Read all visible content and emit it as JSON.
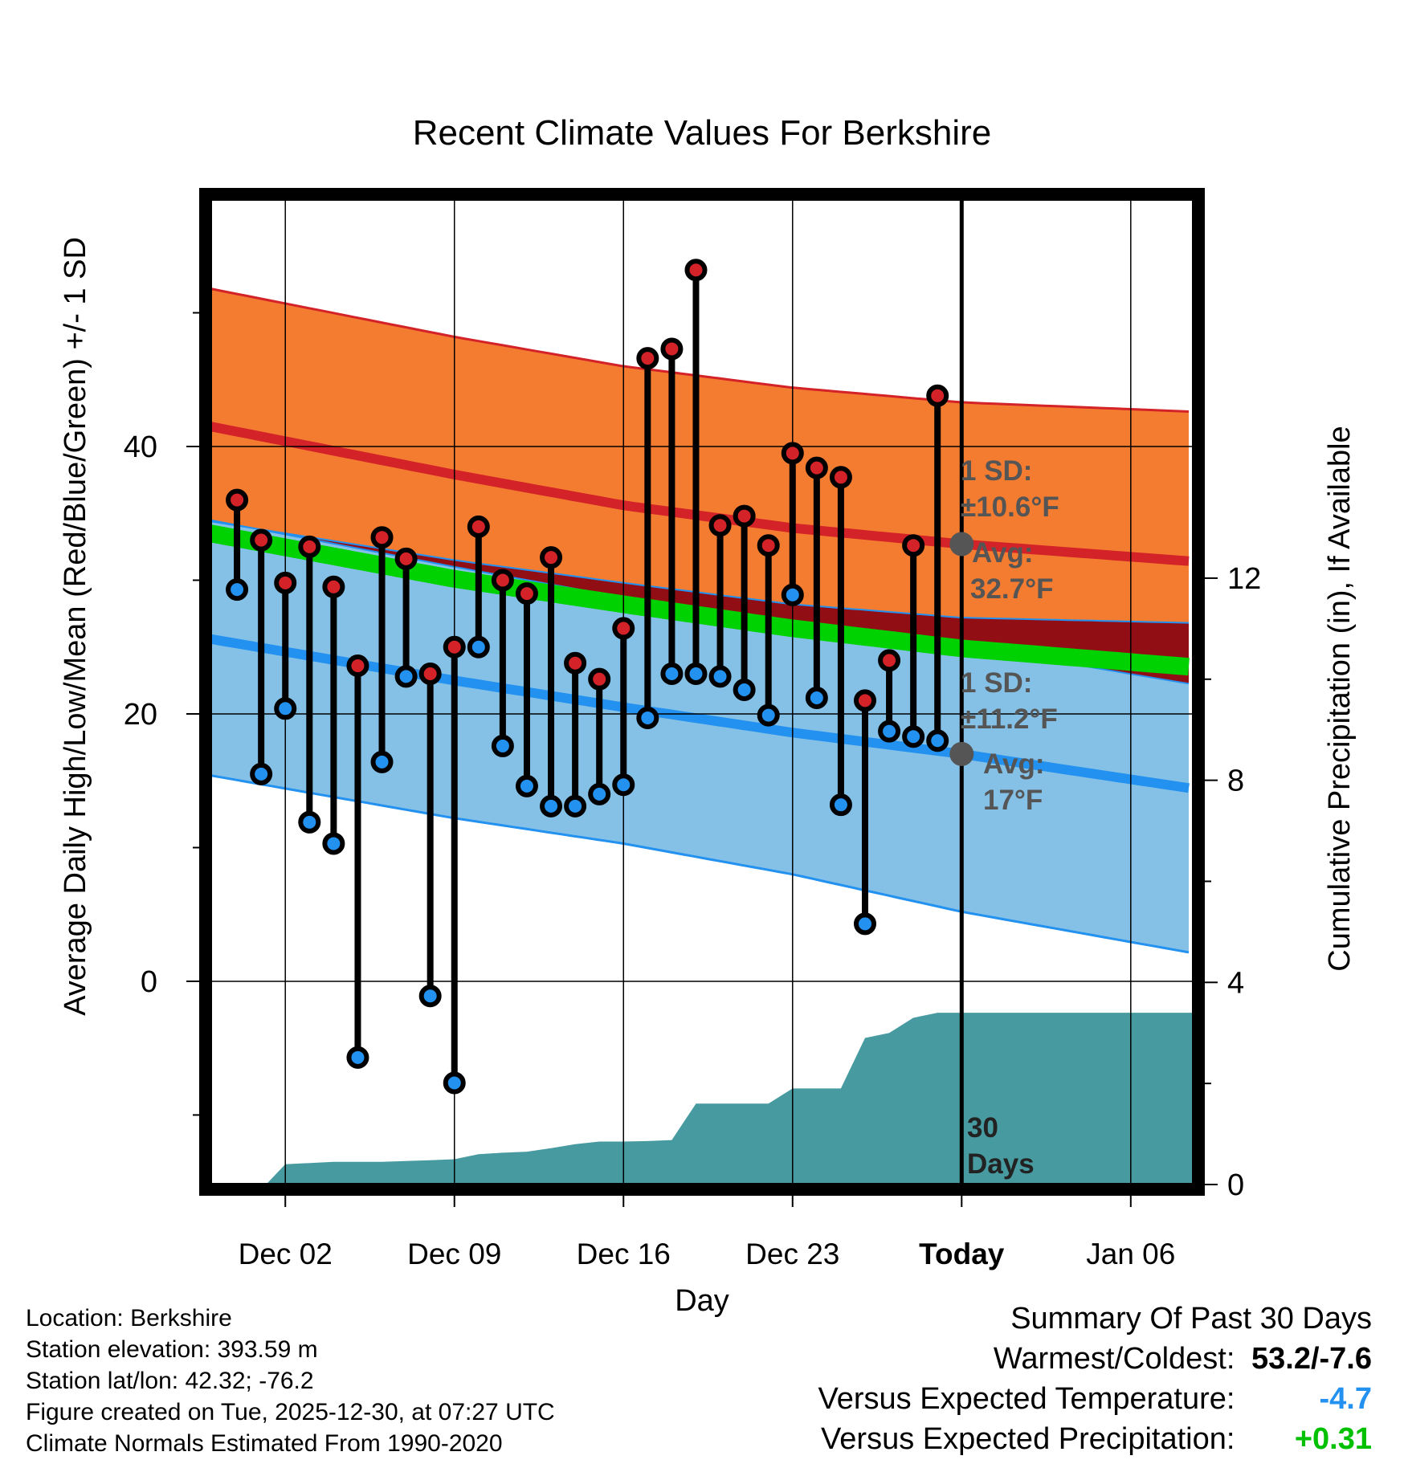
{
  "chart_data": {
    "type": "line",
    "title": "Recent Climate Values For Berkshire",
    "xlabel": "Day",
    "ylabel": "Average Daily High/Low/Mean (Red/Blue/Green) +/- 1 SD",
    "y2label": "Cumulative Precipitation (in), If Available",
    "x_tick_labels": [
      "Dec 02",
      "Dec 09",
      "Dec 16",
      "Dec 23",
      "Today",
      "Jan 06"
    ],
    "x_tick_days": [
      2,
      9,
      16,
      23,
      30,
      37
    ],
    "xlim": [
      -1.1,
      39.6
    ],
    "ylim": [
      -15.2,
      58.5
    ],
    "y_ticks": [
      0,
      20,
      40
    ],
    "y_minor_ticks": [
      -10,
      10,
      30,
      50
    ],
    "y2lim": [
      0,
      19.5
    ],
    "y2_ticks": [
      0,
      4,
      8,
      12
    ],
    "normals_days": [
      -1.1,
      9,
      16,
      23,
      30,
      39.6
    ],
    "normal_high": [
      41.5,
      37.9,
      35.6,
      33.9,
      32.7,
      31.4
    ],
    "normal_high_upper": [
      51.8,
      48.2,
      46.0,
      44.4,
      43.3,
      42.6
    ],
    "normal_high_lower": [
      34.5,
      31.0,
      28.7,
      26.9,
      25.1,
      22.2
    ],
    "normal_mean": [
      33.5,
      30.1,
      28.2,
      26.4,
      24.9,
      23.5
    ],
    "normal_low": [
      25.6,
      22.5,
      20.5,
      18.6,
      17.0,
      14.4
    ],
    "normal_low_upper": [
      34.4,
      31.5,
      29.8,
      28.2,
      27.2,
      26.8
    ],
    "normal_low_lower": [
      15.4,
      12.2,
      10.3,
      8.0,
      5.2,
      2.1
    ],
    "obs_days": [
      0,
      1,
      2,
      3,
      4,
      5,
      6,
      7,
      8,
      9,
      10,
      11,
      12,
      13,
      14,
      15,
      16,
      17,
      18,
      19,
      20,
      21,
      22,
      23,
      24,
      25,
      26,
      27,
      28,
      29
    ],
    "obs_high": [
      36.0,
      33.0,
      29.8,
      32.5,
      29.5,
      23.6,
      33.2,
      31.6,
      23.0,
      25.0,
      34.0,
      30.0,
      29.0,
      31.7,
      23.8,
      22.6,
      26.4,
      46.6,
      47.3,
      53.2,
      34.1,
      34.8,
      32.6,
      39.5,
      38.4,
      37.7,
      21.0,
      24.0,
      32.6,
      43.8
    ],
    "obs_low": [
      29.3,
      15.5,
      20.4,
      11.9,
      10.3,
      -5.7,
      16.4,
      22.8,
      -1.1,
      -7.6,
      25.0,
      17.6,
      14.6,
      13.1,
      13.1,
      14.0,
      14.7,
      19.7,
      23.0,
      23.0,
      22.8,
      21.8,
      19.9,
      28.9,
      21.2,
      13.2,
      4.3,
      18.7,
      18.3,
      18.0
    ],
    "precip_days": [
      -1.1,
      1.2,
      2.0,
      4.0,
      6.0,
      8.0,
      9.0,
      10.0,
      11.0,
      12.0,
      13.0,
      14.0,
      15.0,
      16.0,
      17.0,
      18.0,
      19.0,
      20.0,
      21.0,
      22.0,
      23.0,
      24.0,
      25.0,
      26.0,
      27.0,
      28.0,
      29.0,
      30.0,
      39.6
    ],
    "precip_cum": [
      0,
      0,
      0.4,
      0.45,
      0.45,
      0.48,
      0.5,
      0.6,
      0.63,
      0.65,
      0.72,
      0.8,
      0.85,
      0.85,
      0.86,
      0.88,
      1.6,
      1.6,
      1.6,
      1.6,
      1.9,
      1.9,
      1.9,
      2.9,
      3.0,
      3.3,
      3.4,
      3.4,
      3.4
    ],
    "annotations": {
      "high_sd_label": "1 SD:",
      "high_sd_value": "±10.6°F",
      "high_avg_label": "Avg:",
      "high_avg_value": "32.7°F",
      "low_sd_label": "1 SD:",
      "low_sd_value": "±11.2°F",
      "low_avg_label": "Avg:",
      "low_avg_value": "17°F",
      "window_number": "30",
      "window_unit": "Days"
    },
    "colors": {
      "high_band": "#f47c30",
      "high_line": "#d32228",
      "low_band": "#85c1e6",
      "low_line": "#2291f0",
      "mean_line": "#00d100",
      "overlap_band": "#920e15",
      "precip": "#469aa0",
      "dot_high": "#d32228",
      "dot_low": "#2291f0"
    }
  },
  "info": {
    "location": "Location: Berkshire",
    "elevation": "Station elevation: 393.59 m",
    "latlon": "Station lat/lon: 42.32; -76.2",
    "created": "Figure created on Tue, 2025-12-30, at 07:27 UTC",
    "normals": "Climate Normals Estimated From 1990-2020"
  },
  "summary": {
    "title": "Summary Of Past 30 Days",
    "warm_cold_label": "Warmest/Coldest:",
    "warm_cold_value": "53.2/-7.6",
    "temp_label": "Versus Expected Temperature:",
    "temp_value": "-4.7",
    "temp_color": "#2291f0",
    "precip_label": "Versus Expected Precipitation:",
    "precip_value": "+0.31",
    "precip_color": "#00c000"
  }
}
